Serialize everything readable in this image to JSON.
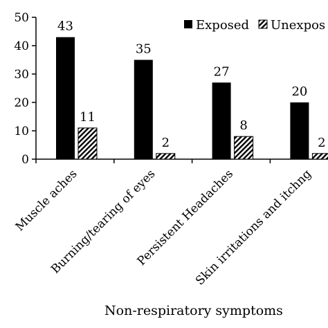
{
  "chart_data": {
    "type": "bar",
    "title": "",
    "xlabel": "Non-respiratory symptoms",
    "ylabel": "",
    "ylim": [
      0,
      50
    ],
    "yticks": [
      0,
      10,
      20,
      30,
      40,
      50
    ],
    "grid": false,
    "legend_position": "top-right",
    "categories": [
      "Muscle aches",
      "Burning/tearing of eyes",
      "Persistent Headaches",
      "Skin irritations and itchng"
    ],
    "series": [
      {
        "name": "Exposed",
        "values": [
          43,
          35,
          27,
          20
        ],
        "color": "#000000",
        "pattern": "solid"
      },
      {
        "name": "Unexpos",
        "values": [
          11,
          2,
          8,
          2
        ],
        "color": "#000000",
        "pattern": "diagonal-hatch"
      }
    ]
  }
}
